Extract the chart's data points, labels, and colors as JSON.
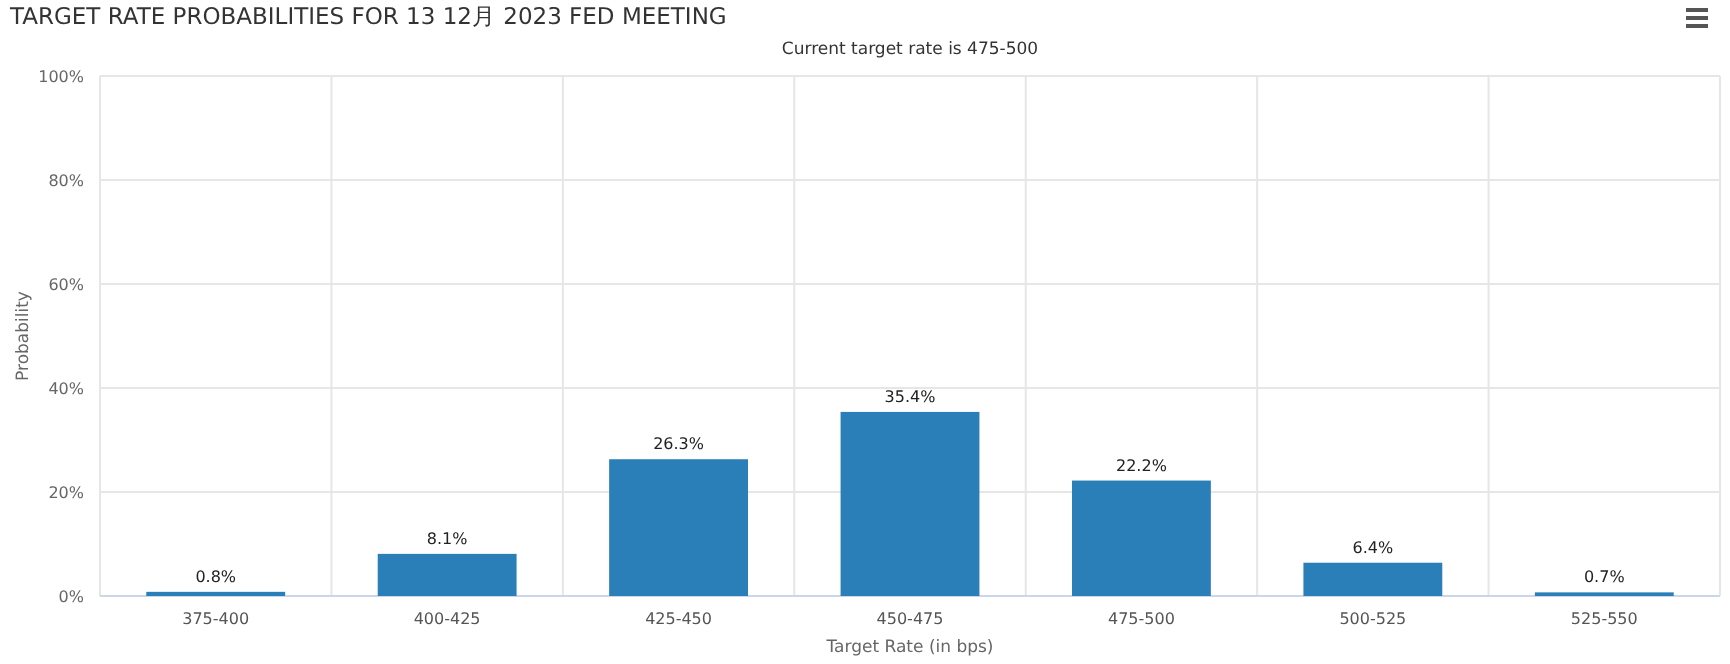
{
  "chart_data": {
    "type": "bar",
    "title": "TARGET RATE PROBABILITIES FOR 13 12月 2023 FED MEETING",
    "subtitle": "Current target rate is 475-500",
    "xlabel": "Target Rate (in bps)",
    "ylabel": "Probability",
    "categories": [
      "375-400",
      "400-425",
      "425-450",
      "450-475",
      "475-500",
      "500-525",
      "525-550"
    ],
    "values": [
      0.8,
      8.1,
      26.3,
      35.4,
      22.2,
      6.4,
      0.7
    ],
    "color": "#2b7fb8",
    "value_labels": [
      "0.8%",
      "8.1%",
      "26.3%",
      "35.4%",
      "22.2%",
      "6.4%",
      "0.7%"
    ],
    "ylim": [
      0,
      100
    ],
    "yticks": [
      {
        "value": 0,
        "label": "0%"
      },
      {
        "value": 20,
        "label": "20%"
      },
      {
        "value": 40,
        "label": "40%"
      },
      {
        "value": 60,
        "label": "60%"
      },
      {
        "value": 80,
        "label": "80%"
      },
      {
        "value": 100,
        "label": "100%"
      }
    ],
    "grid": true
  }
}
